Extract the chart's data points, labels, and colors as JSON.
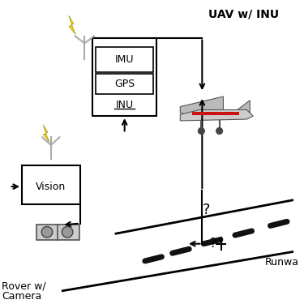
{
  "bg_color": "#ffffff",
  "uav_label": "UAV w/ INU",
  "rover_label1": "Rover w/",
  "rover_label2": "Camera",
  "runway_label": "Runwa",
  "imu_label": "IMU",
  "gps_label": "GPS",
  "inu_label": "INU",
  "vision_label": "Vision",
  "lightning_color": "#FFD700",
  "box_color": "#000000",
  "arrow_color": "#000000",
  "text_color": "#000000",
  "runway_line_color": "#000000",
  "dash_color": "#111111",
  "gray_color": "#888888",
  "ant_color": "#aaaaaa"
}
